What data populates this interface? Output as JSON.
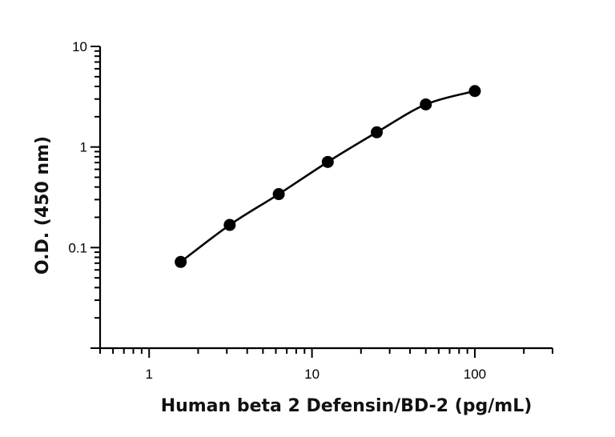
{
  "chart_data": {
    "type": "scatter",
    "title": "",
    "xlabel": "Human beta 2 Defensin/BD-2 (pg/mL)",
    "ylabel": "O.D. (450 nm)",
    "x_scale": "log",
    "y_scale": "log",
    "xlim": [
      0.5,
      300
    ],
    "ylim": [
      0.01,
      10
    ],
    "x_ticks": [
      {
        "value": 1,
        "label": "1"
      },
      {
        "value": 10,
        "label": "10"
      },
      {
        "value": 100,
        "label": "100"
      }
    ],
    "y_ticks": [
      {
        "value": 0.1,
        "label": "0.1"
      },
      {
        "value": 1,
        "label": "1"
      },
      {
        "value": 10,
        "label": "10"
      }
    ],
    "grid": false,
    "legend": "none",
    "series": [
      {
        "x": [
          1.5625,
          3.125,
          6.25,
          12.5,
          25,
          50,
          100
        ],
        "y": [
          0.072,
          0.168,
          0.34,
          0.71,
          1.4,
          2.65,
          3.6
        ],
        "color": "#000000",
        "fit_curve": true
      }
    ]
  }
}
